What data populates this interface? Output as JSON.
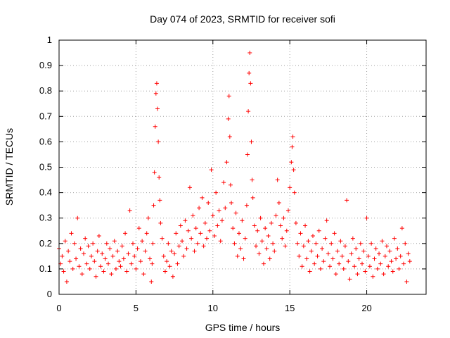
{
  "chart_data": {
    "type": "scatter",
    "title": "Day 074 of 2023, SRMTID for receiver sofi",
    "xlabel": "GPS time / hours",
    "ylabel": "SRMTID / TECUs",
    "xlim": [
      0,
      23.86
    ],
    "ylim": [
      0,
      1
    ],
    "xticks": [
      0,
      5,
      10,
      15,
      20
    ],
    "xtick_labels": [
      "0",
      "5",
      "10",
      "15",
      "20"
    ],
    "yticks": [
      0,
      0.1,
      0.2,
      0.3,
      0.4,
      0.5,
      0.6,
      0.7,
      0.8,
      0.9,
      1
    ],
    "ytick_labels": [
      "0",
      "0.1",
      "0.2",
      "0.3",
      "0.4",
      "0.5",
      "0.6",
      "0.7",
      "0.8",
      "0.9",
      "1"
    ],
    "grid": true,
    "legend": "none",
    "marker": "+",
    "color": "#ff0000",
    "series": [
      {
        "name": "SRMTID",
        "points": [
          [
            0.0,
            0.18
          ],
          [
            0.1,
            0.12
          ],
          [
            0.2,
            0.15
          ],
          [
            0.3,
            0.09
          ],
          [
            0.4,
            0.21
          ],
          [
            0.5,
            0.05
          ],
          [
            0.6,
            0.17
          ],
          [
            0.7,
            0.13
          ],
          [
            0.8,
            0.24
          ],
          [
            0.9,
            0.1
          ],
          [
            1.0,
            0.2
          ],
          [
            1.1,
            0.14
          ],
          [
            1.2,
            0.3
          ],
          [
            1.3,
            0.11
          ],
          [
            1.4,
            0.18
          ],
          [
            1.5,
            0.08
          ],
          [
            1.6,
            0.16
          ],
          [
            1.7,
            0.22
          ],
          [
            1.8,
            0.12
          ],
          [
            1.9,
            0.19
          ],
          [
            2.0,
            0.1
          ],
          [
            2.1,
            0.15
          ],
          [
            2.2,
            0.2
          ],
          [
            2.3,
            0.13
          ],
          [
            2.4,
            0.07
          ],
          [
            2.5,
            0.17
          ],
          [
            2.6,
            0.23
          ],
          [
            2.7,
            0.11
          ],
          [
            2.8,
            0.16
          ],
          [
            2.9,
            0.09
          ],
          [
            3.0,
            0.14
          ],
          [
            3.1,
            0.2
          ],
          [
            3.2,
            0.12
          ],
          [
            3.3,
            0.18
          ],
          [
            3.4,
            0.08
          ],
          [
            3.5,
            0.15
          ],
          [
            3.6,
            0.21
          ],
          [
            3.7,
            0.1
          ],
          [
            3.8,
            0.17
          ],
          [
            3.9,
            0.13
          ],
          [
            4.0,
            0.11
          ],
          [
            4.1,
            0.19
          ],
          [
            4.2,
            0.14
          ],
          [
            4.3,
            0.24
          ],
          [
            4.4,
            0.09
          ],
          [
            4.5,
            0.16
          ],
          [
            4.6,
            0.33
          ],
          [
            4.7,
            0.12
          ],
          [
            4.8,
            0.2
          ],
          [
            4.9,
            0.15
          ],
          [
            5.0,
            0.1
          ],
          [
            5.1,
            0.18
          ],
          [
            5.2,
            0.26
          ],
          [
            5.3,
            0.13
          ],
          [
            5.4,
            0.21
          ],
          [
            5.5,
            0.08
          ],
          [
            5.6,
            0.17
          ],
          [
            5.7,
            0.24
          ],
          [
            5.8,
            0.3
          ],
          [
            5.9,
            0.14
          ],
          [
            6.0,
            0.05
          ],
          [
            6.05,
            0.12
          ],
          [
            6.1,
            0.2
          ],
          [
            6.15,
            0.35
          ],
          [
            6.2,
            0.48
          ],
          [
            6.25,
            0.66
          ],
          [
            6.3,
            0.79
          ],
          [
            6.35,
            0.83
          ],
          [
            6.4,
            0.73
          ],
          [
            6.45,
            0.6
          ],
          [
            6.5,
            0.46
          ],
          [
            6.55,
            0.37
          ],
          [
            6.6,
            0.28
          ],
          [
            6.7,
            0.22
          ],
          [
            6.8,
            0.15
          ],
          [
            6.9,
            0.09
          ],
          [
            7.0,
            0.13
          ],
          [
            7.1,
            0.2
          ],
          [
            7.2,
            0.11
          ],
          [
            7.3,
            0.17
          ],
          [
            7.4,
            0.07
          ],
          [
            7.5,
            0.16
          ],
          [
            7.6,
            0.24
          ],
          [
            7.7,
            0.12
          ],
          [
            7.8,
            0.19
          ],
          [
            7.9,
            0.27
          ],
          [
            8.0,
            0.21
          ],
          [
            8.1,
            0.15
          ],
          [
            8.2,
            0.29
          ],
          [
            8.3,
            0.18
          ],
          [
            8.4,
            0.25
          ],
          [
            8.5,
            0.42
          ],
          [
            8.6,
            0.22
          ],
          [
            8.7,
            0.31
          ],
          [
            8.8,
            0.17
          ],
          [
            8.9,
            0.26
          ],
          [
            9.0,
            0.2
          ],
          [
            9.1,
            0.34
          ],
          [
            9.2,
            0.24
          ],
          [
            9.3,
            0.38
          ],
          [
            9.4,
            0.19
          ],
          [
            9.5,
            0.28
          ],
          [
            9.6,
            0.22
          ],
          [
            9.7,
            0.36
          ],
          [
            9.8,
            0.25
          ],
          [
            9.9,
            0.49
          ],
          [
            10.0,
            0.31
          ],
          [
            10.1,
            0.23
          ],
          [
            10.2,
            0.4
          ],
          [
            10.3,
            0.27
          ],
          [
            10.4,
            0.33
          ],
          [
            10.5,
            0.21
          ],
          [
            10.6,
            0.29
          ],
          [
            10.7,
            0.44
          ],
          [
            10.8,
            0.34
          ],
          [
            10.9,
            0.52
          ],
          [
            11.0,
            0.69
          ],
          [
            11.05,
            0.78
          ],
          [
            11.1,
            0.62
          ],
          [
            11.15,
            0.43
          ],
          [
            11.2,
            0.36
          ],
          [
            11.3,
            0.26
          ],
          [
            11.4,
            0.2
          ],
          [
            11.5,
            0.32
          ],
          [
            11.6,
            0.15
          ],
          [
            11.7,
            0.24
          ],
          [
            11.8,
            0.18
          ],
          [
            11.9,
            0.29
          ],
          [
            12.0,
            0.14
          ],
          [
            12.1,
            0.22
          ],
          [
            12.2,
            0.35
          ],
          [
            12.25,
            0.55
          ],
          [
            12.3,
            0.72
          ],
          [
            12.35,
            0.87
          ],
          [
            12.4,
            0.95
          ],
          [
            12.45,
            0.83
          ],
          [
            12.5,
            0.6
          ],
          [
            12.55,
            0.45
          ],
          [
            12.6,
            0.38
          ],
          [
            12.7,
            0.27
          ],
          [
            12.8,
            0.19
          ],
          [
            12.9,
            0.25
          ],
          [
            13.0,
            0.16
          ],
          [
            13.1,
            0.3
          ],
          [
            13.2,
            0.21
          ],
          [
            13.3,
            0.12
          ],
          [
            13.4,
            0.26
          ],
          [
            13.5,
            0.18
          ],
          [
            13.6,
            0.23
          ],
          [
            13.7,
            0.14
          ],
          [
            13.8,
            0.28
          ],
          [
            13.9,
            0.2
          ],
          [
            14.0,
            0.17
          ],
          [
            14.1,
            0.31
          ],
          [
            14.2,
            0.45
          ],
          [
            14.3,
            0.36
          ],
          [
            14.4,
            0.27
          ],
          [
            14.5,
            0.22
          ],
          [
            14.6,
            0.3
          ],
          [
            14.7,
            0.19
          ],
          [
            14.8,
            0.25
          ],
          [
            14.9,
            0.33
          ],
          [
            15.0,
            0.42
          ],
          [
            15.1,
            0.52
          ],
          [
            15.15,
            0.58
          ],
          [
            15.2,
            0.62
          ],
          [
            15.25,
            0.49
          ],
          [
            15.3,
            0.4
          ],
          [
            15.4,
            0.28
          ],
          [
            15.5,
            0.2
          ],
          [
            15.6,
            0.15
          ],
          [
            15.7,
            0.24
          ],
          [
            15.8,
            0.11
          ],
          [
            15.9,
            0.19
          ],
          [
            16.0,
            0.27
          ],
          [
            16.1,
            0.14
          ],
          [
            16.2,
            0.21
          ],
          [
            16.3,
            0.09
          ],
          [
            16.4,
            0.17
          ],
          [
            16.5,
            0.23
          ],
          [
            16.6,
            0.12
          ],
          [
            16.7,
            0.2
          ],
          [
            16.8,
            0.15
          ],
          [
            16.9,
            0.25
          ],
          [
            17.0,
            0.1
          ],
          [
            17.1,
            0.18
          ],
          [
            17.2,
            0.13
          ],
          [
            17.3,
            0.22
          ],
          [
            17.4,
            0.29
          ],
          [
            17.5,
            0.16
          ],
          [
            17.6,
            0.11
          ],
          [
            17.7,
            0.2
          ],
          [
            17.8,
            0.14
          ],
          [
            17.9,
            0.24
          ],
          [
            18.0,
            0.08
          ],
          [
            18.1,
            0.17
          ],
          [
            18.2,
            0.12
          ],
          [
            18.3,
            0.21
          ],
          [
            18.4,
            0.15
          ],
          [
            18.5,
            0.1
          ],
          [
            18.6,
            0.19
          ],
          [
            18.7,
            0.37
          ],
          [
            18.8,
            0.13
          ],
          [
            18.9,
            0.06
          ],
          [
            19.0,
            0.16
          ],
          [
            19.1,
            0.22
          ],
          [
            19.2,
            0.11
          ],
          [
            19.3,
            0.18
          ],
          [
            19.4,
            0.08
          ],
          [
            19.5,
            0.14
          ],
          [
            19.6,
            0.2
          ],
          [
            19.7,
            0.12
          ],
          [
            19.8,
            0.17
          ],
          [
            19.9,
            0.09
          ],
          [
            20.0,
            0.3
          ],
          [
            20.1,
            0.15
          ],
          [
            20.2,
            0.11
          ],
          [
            20.3,
            0.2
          ],
          [
            20.4,
            0.07
          ],
          [
            20.5,
            0.14
          ],
          [
            20.6,
            0.18
          ],
          [
            20.7,
            0.1
          ],
          [
            20.8,
            0.16
          ],
          [
            20.9,
            0.12
          ],
          [
            21.0,
            0.21
          ],
          [
            21.1,
            0.08
          ],
          [
            21.2,
            0.15
          ],
          [
            21.3,
            0.19
          ],
          [
            21.4,
            0.11
          ],
          [
            21.5,
            0.17
          ],
          [
            21.6,
            0.13
          ],
          [
            21.7,
            0.09
          ],
          [
            21.8,
            0.22
          ],
          [
            21.9,
            0.14
          ],
          [
            22.0,
            0.18
          ],
          [
            22.1,
            0.1
          ],
          [
            22.2,
            0.15
          ],
          [
            22.3,
            0.26
          ],
          [
            22.4,
            0.12
          ],
          [
            22.5,
            0.2
          ],
          [
            22.6,
            0.05
          ],
          [
            22.7,
            0.16
          ],
          [
            22.8,
            0.13
          ]
        ]
      }
    ]
  }
}
